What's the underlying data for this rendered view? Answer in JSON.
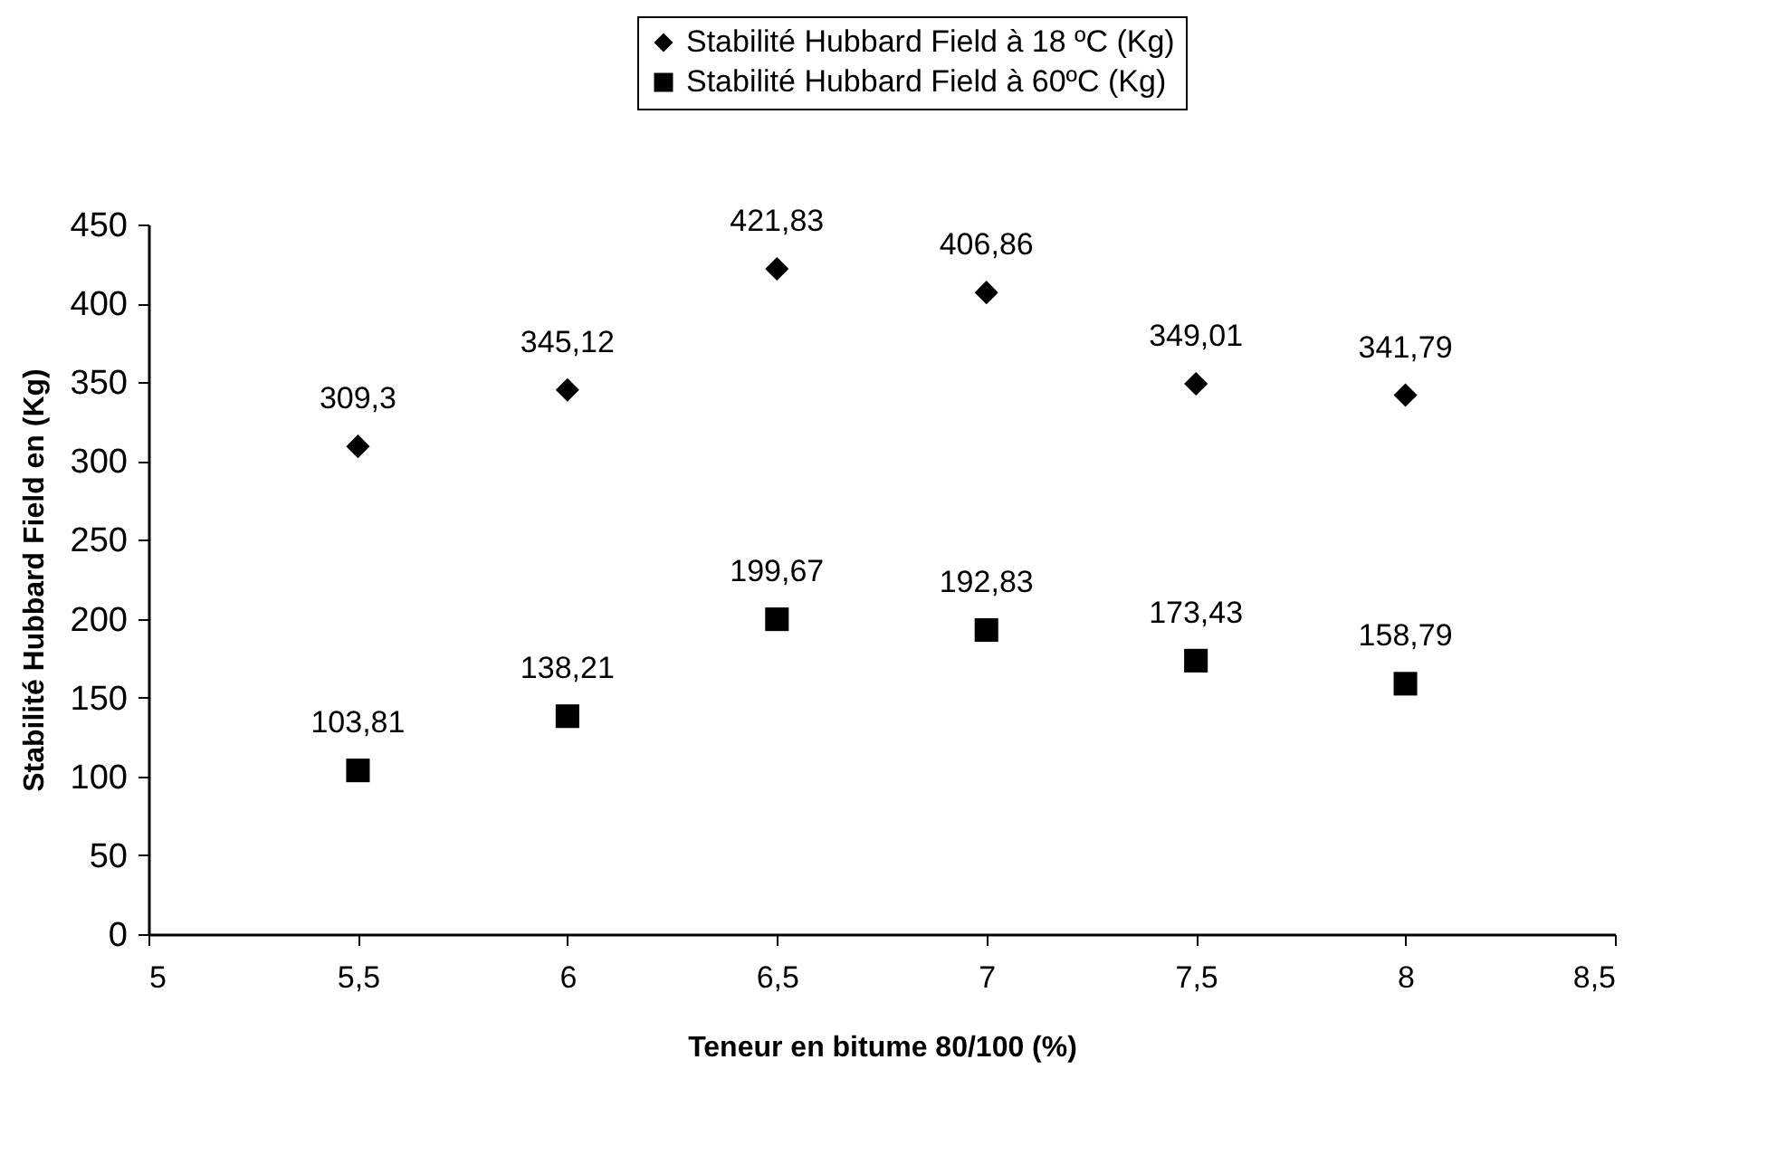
{
  "chart_data": {
    "type": "scatter",
    "xlabel": "Teneur en bitume 80/100 (%)",
    "ylabel": "Stabilité Hubbard Field en (Kg)",
    "x": [
      5.5,
      6,
      6.5,
      7,
      7.5,
      8
    ],
    "series": [
      {
        "name": "Stabilité Hubbard Field à 18 ºC (Kg)",
        "color": "#000000",
        "marker": "diamond",
        "values": [
          309.3,
          345.12,
          421.83,
          406.86,
          349.01,
          341.79
        ],
        "value_labels": [
          "309,3",
          "345,12",
          "421,83",
          "406,86",
          "349,01",
          "341,79"
        ]
      },
      {
        "name": "Stabilité Hubbard Field à 60ºC (Kg)",
        "color": "#000000",
        "marker": "square",
        "values": [
          103.81,
          138.21,
          199.67,
          192.83,
          173.43,
          158.79
        ],
        "value_labels": [
          "103,81",
          "138,21",
          "199,67",
          "192,83",
          "173,43",
          "158,79"
        ]
      }
    ],
    "xlim": [
      5,
      8.5
    ],
    "xticks": [
      5,
      {
        "value": 5.5,
        "label": "5,5"
      },
      6,
      {
        "value": 6.5,
        "label": "6,5"
      },
      7,
      {
        "value": 7.5,
        "label": "7,5"
      },
      8,
      {
        "value": 8.5,
        "label": "8,5"
      }
    ],
    "ylim": [
      0,
      450
    ],
    "yticks": [
      0,
      50,
      100,
      150,
      200,
      250,
      300,
      350,
      400,
      450
    ],
    "grid": false,
    "legend": "top"
  }
}
